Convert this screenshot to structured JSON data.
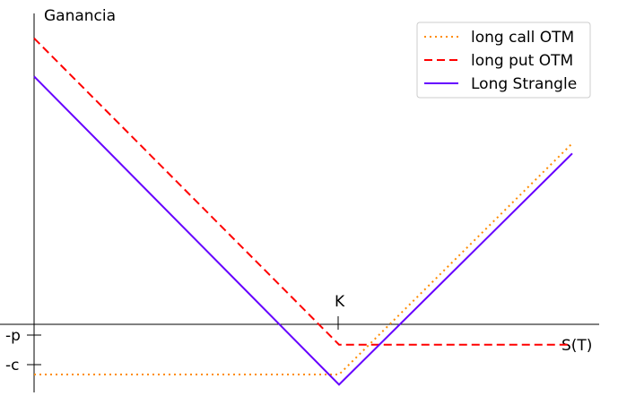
{
  "chart_data": {
    "type": "line",
    "ylabel": "Ganancia",
    "xlabel": "S(T)",
    "strike_label": "K",
    "y_tick_labels": [
      "-p",
      "-c"
    ],
    "xlim": [
      0,
      90
    ],
    "ylim": [
      -10,
      53
    ],
    "grid": false,
    "legend_position": "top-right",
    "series": [
      {
        "name": "long call OTM",
        "style": "dotted",
        "color": "#ff8c00",
        "points": [
          [
            0,
            -6.7
          ],
          [
            51,
            -6.7
          ],
          [
            90,
            32
          ]
        ]
      },
      {
        "name": "long put OTM",
        "style": "dashed",
        "color": "#ff0000",
        "points": [
          [
            0,
            49.6
          ],
          [
            51,
            -1.7
          ],
          [
            90,
            -1.7
          ]
        ]
      },
      {
        "name": "Long Strangle",
        "style": "solid",
        "color": "#6600ff",
        "points": [
          [
            0,
            43.2
          ],
          [
            51,
            -8.4
          ],
          [
            90,
            30.3
          ]
        ]
      }
    ]
  }
}
